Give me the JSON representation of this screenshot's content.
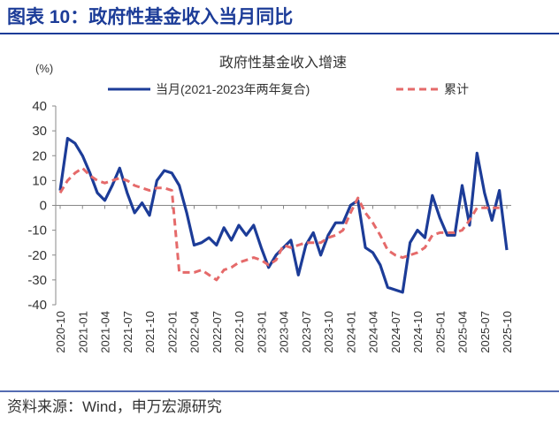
{
  "header": {
    "title": "图表 10：政府性基金收入当月同比"
  },
  "source": "资料来源：Wind，申万宏源研究",
  "chart_data": {
    "type": "line",
    "title": "政府性基金收入增速",
    "y_label": "(%)",
    "categories": [
      "2020-10",
      null,
      null,
      "2021-01",
      null,
      null,
      "2021-04",
      null,
      null,
      "2021-07",
      null,
      null,
      "2021-10",
      null,
      null,
      "2022-01",
      null,
      null,
      "2022-04",
      null,
      null,
      "2022-07",
      null,
      null,
      "2022-10",
      null,
      null,
      "2023-01",
      null,
      null,
      "2023-04",
      null,
      null,
      "2023-07",
      null,
      null,
      "2023-10",
      null,
      null,
      "2024-01",
      null,
      null,
      "2024-04",
      null,
      null,
      "2024-07",
      null,
      null,
      "2024-10",
      null,
      null,
      "2025-01",
      null,
      null,
      "2025-04",
      null,
      null,
      "2025-07",
      null,
      null,
      "2025-10"
    ],
    "series": [
      {
        "name": "当月(2021-2023年两年复合)",
        "color": "#1c3c98",
        "dash": false,
        "values": [
          6,
          27,
          25,
          20,
          13,
          5,
          2,
          8,
          15,
          5,
          -3,
          1,
          -4,
          10,
          14,
          13,
          8,
          -3,
          -16,
          -15,
          -13,
          -16,
          -9,
          -14,
          -8,
          -12,
          -8,
          -17,
          -25,
          -20,
          -17,
          -14,
          -28,
          -16,
          -11,
          -20,
          -12,
          -7,
          -7,
          0,
          2,
          -17,
          -19,
          -24,
          -33,
          -34,
          -35,
          -15,
          -10,
          -13,
          4,
          -5,
          -12,
          -12,
          8,
          -8,
          21,
          5,
          -6,
          6,
          -18
        ]
      },
      {
        "name": "累计",
        "color": "#e56a6a",
        "dash": true,
        "values": [
          5,
          10,
          13,
          15,
          12,
          10,
          9,
          10,
          11,
          10,
          8,
          7,
          6,
          7,
          7,
          6,
          -27,
          -27,
          -27,
          -26,
          -28,
          -30,
          -26,
          -25,
          -23,
          -22,
          -21,
          -22,
          -24,
          -22,
          -16,
          -17,
          -16,
          -15,
          -15,
          -15,
          -13,
          -12,
          -10,
          -3,
          3,
          -3,
          -7,
          -12,
          -18,
          -20,
          -21,
          -20,
          -19,
          -17,
          -12,
          -11,
          -11,
          -11,
          -10,
          -6,
          -1,
          -1,
          -1,
          -1,
          null
        ]
      }
    ],
    "ylim": [
      -40,
      40
    ],
    "yticks": [
      -40,
      -30,
      -20,
      -10,
      0,
      10,
      20,
      30,
      40
    ],
    "grid": false
  }
}
